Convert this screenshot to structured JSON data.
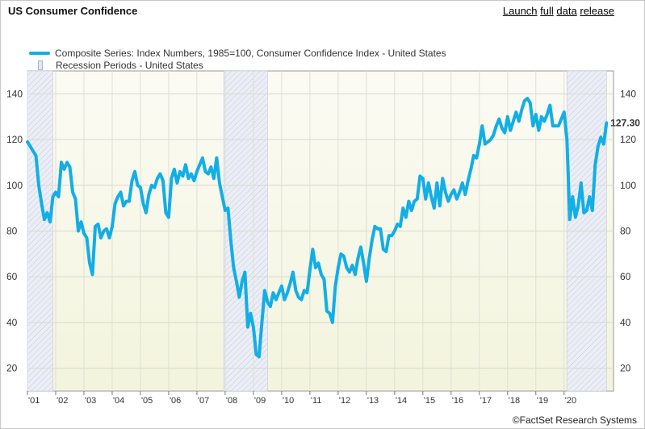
{
  "header": {
    "title": "US Consumer Confidence",
    "links": [
      "Launch",
      "full",
      "data",
      "release"
    ]
  },
  "footer": {
    "source": "©FactSet Research Systems"
  },
  "chart_data": {
    "type": "line",
    "title": "US Consumer Confidence",
    "legend": [
      {
        "name": "Composite Series: Index Numbers, 1985=100, Consumer Confidence Index - United States",
        "color": "#12aee6"
      },
      {
        "name": "Recession Periods - United States",
        "color": "#e4e7f3"
      }
    ],
    "legend_position": "top-left",
    "grid": true,
    "xlim": [
      2001.0,
      2021.75
    ],
    "ylim": [
      10,
      150
    ],
    "y_ticks": [
      20,
      40,
      60,
      80,
      100,
      120,
      140
    ],
    "x_tick_labels": [
      "'01",
      "'02",
      "'03",
      "'04",
      "'05",
      "'06",
      "'07",
      "'08",
      "'09",
      "'10",
      "'11",
      "'12",
      "'13",
      "'14",
      "'15",
      "'16",
      "'17",
      "'18",
      "'19",
      "'20"
    ],
    "x_tick_years": [
      2001,
      2002,
      2003,
      2004,
      2005,
      2006,
      2007,
      2008,
      2009,
      2010,
      2011,
      2012,
      2013,
      2014,
      2015,
      2016,
      2017,
      2018,
      2019,
      2020
    ],
    "last_value_label": "127.30",
    "recessions": [
      [
        2001.0,
        2001.9
      ],
      [
        2007.95,
        2009.5
      ],
      [
        2020.1,
        2021.5
      ]
    ],
    "series": [
      {
        "name": "Composite Series: Index Numbers, 1985=100, Consumer Confidence Index - United States",
        "color": "#12aee6",
        "points": [
          [
            2001.0,
            119
          ],
          [
            2001.1,
            117
          ],
          [
            2001.2,
            115
          ],
          [
            2001.3,
            113
          ],
          [
            2001.4,
            100
          ],
          [
            2001.5,
            92
          ],
          [
            2001.6,
            85
          ],
          [
            2001.7,
            88
          ],
          [
            2001.8,
            84
          ],
          [
            2001.9,
            95
          ],
          [
            2002.0,
            97
          ],
          [
            2002.1,
            95
          ],
          [
            2002.2,
            110
          ],
          [
            2002.3,
            107
          ],
          [
            2002.4,
            110
          ],
          [
            2002.5,
            108
          ],
          [
            2002.6,
            97
          ],
          [
            2002.7,
            94
          ],
          [
            2002.8,
            80
          ],
          [
            2002.9,
            84
          ],
          [
            2003.0,
            79
          ],
          [
            2003.1,
            77
          ],
          [
            2003.2,
            66
          ],
          [
            2003.3,
            61
          ],
          [
            2003.4,
            82
          ],
          [
            2003.5,
            83
          ],
          [
            2003.6,
            77
          ],
          [
            2003.7,
            80
          ],
          [
            2003.8,
            81
          ],
          [
            2003.9,
            77
          ],
          [
            2004.0,
            82
          ],
          [
            2004.1,
            92
          ],
          [
            2004.2,
            95
          ],
          [
            2004.3,
            97
          ],
          [
            2004.4,
            91
          ],
          [
            2004.5,
            93
          ],
          [
            2004.6,
            93
          ],
          [
            2004.7,
            102
          ],
          [
            2004.8,
            106
          ],
          [
            2004.9,
            100
          ],
          [
            2005.0,
            99
          ],
          [
            2005.1,
            92
          ],
          [
            2005.2,
            88
          ],
          [
            2005.3,
            96
          ],
          [
            2005.4,
            100
          ],
          [
            2005.5,
            99
          ],
          [
            2005.6,
            103
          ],
          [
            2005.7,
            105
          ],
          [
            2005.8,
            102
          ],
          [
            2005.9,
            88
          ],
          [
            2006.0,
            86
          ],
          [
            2006.1,
            103
          ],
          [
            2006.2,
            107
          ],
          [
            2006.3,
            101
          ],
          [
            2006.4,
            106
          ],
          [
            2006.5,
            104
          ],
          [
            2006.6,
            109
          ],
          [
            2006.7,
            103
          ],
          [
            2006.8,
            105
          ],
          [
            2006.9,
            102
          ],
          [
            2007.0,
            106
          ],
          [
            2007.1,
            109
          ],
          [
            2007.2,
            112
          ],
          [
            2007.3,
            106
          ],
          [
            2007.4,
            105
          ],
          [
            2007.5,
            108
          ],
          [
            2007.6,
            103
          ],
          [
            2007.7,
            112
          ],
          [
            2007.8,
            101
          ],
          [
            2007.9,
            95
          ],
          [
            2008.0,
            89
          ],
          [
            2008.1,
            90
          ],
          [
            2008.2,
            76
          ],
          [
            2008.3,
            64
          ],
          [
            2008.4,
            58
          ],
          [
            2008.5,
            51
          ],
          [
            2008.6,
            58
          ],
          [
            2008.7,
            62
          ],
          [
            2008.8,
            38
          ],
          [
            2008.9,
            44
          ],
          [
            2009.0,
            38
          ],
          [
            2009.1,
            26
          ],
          [
            2009.2,
            25
          ],
          [
            2009.3,
            40
          ],
          [
            2009.4,
            54
          ],
          [
            2009.5,
            49
          ],
          [
            2009.6,
            47
          ],
          [
            2009.7,
            53
          ],
          [
            2009.8,
            50
          ],
          [
            2009.9,
            53
          ],
          [
            2010.0,
            56
          ],
          [
            2010.1,
            50
          ],
          [
            2010.2,
            53
          ],
          [
            2010.3,
            57
          ],
          [
            2010.4,
            62
          ],
          [
            2010.5,
            54
          ],
          [
            2010.6,
            51
          ],
          [
            2010.7,
            50
          ],
          [
            2010.8,
            54
          ],
          [
            2010.9,
            53
          ],
          [
            2011.0,
            63
          ],
          [
            2011.1,
            72
          ],
          [
            2011.2,
            64
          ],
          [
            2011.3,
            66
          ],
          [
            2011.4,
            61
          ],
          [
            2011.5,
            59
          ],
          [
            2011.6,
            45
          ],
          [
            2011.7,
            44
          ],
          [
            2011.8,
            40
          ],
          [
            2011.9,
            56
          ],
          [
            2012.0,
            64
          ],
          [
            2012.1,
            70
          ],
          [
            2012.2,
            69
          ],
          [
            2012.3,
            64
          ],
          [
            2012.4,
            62
          ],
          [
            2012.5,
            65
          ],
          [
            2012.6,
            61
          ],
          [
            2012.7,
            68
          ],
          [
            2012.8,
            73
          ],
          [
            2012.9,
            66
          ],
          [
            2013.0,
            58
          ],
          [
            2013.1,
            68
          ],
          [
            2013.2,
            76
          ],
          [
            2013.3,
            82
          ],
          [
            2013.4,
            81
          ],
          [
            2013.5,
            81
          ],
          [
            2013.6,
            72
          ],
          [
            2013.7,
            71
          ],
          [
            2013.8,
            78
          ],
          [
            2013.9,
            78
          ],
          [
            2014.0,
            80
          ],
          [
            2014.1,
            83
          ],
          [
            2014.2,
            82
          ],
          [
            2014.3,
            90
          ],
          [
            2014.4,
            86
          ],
          [
            2014.5,
            93
          ],
          [
            2014.6,
            89
          ],
          [
            2014.7,
            93
          ],
          [
            2014.8,
            94
          ],
          [
            2014.9,
            104
          ],
          [
            2015.0,
            103
          ],
          [
            2015.1,
            94
          ],
          [
            2015.2,
            101
          ],
          [
            2015.3,
            95
          ],
          [
            2015.4,
            90
          ],
          [
            2015.5,
            101
          ],
          [
            2015.6,
            91
          ],
          [
            2015.7,
            103
          ],
          [
            2015.8,
            97
          ],
          [
            2015.9,
            93
          ],
          [
            2016.0,
            96
          ],
          [
            2016.1,
            98
          ],
          [
            2016.2,
            94
          ],
          [
            2016.3,
            97
          ],
          [
            2016.4,
            101
          ],
          [
            2016.5,
            96
          ],
          [
            2016.6,
            102
          ],
          [
            2016.7,
            107
          ],
          [
            2016.8,
            113
          ],
          [
            2016.9,
            112
          ],
          [
            2017.0,
            118
          ],
          [
            2017.1,
            126
          ],
          [
            2017.2,
            118
          ],
          [
            2017.3,
            119
          ],
          [
            2017.4,
            120
          ],
          [
            2017.5,
            122
          ],
          [
            2017.6,
            126
          ],
          [
            2017.7,
            129
          ],
          [
            2017.8,
            125
          ],
          [
            2017.9,
            123
          ],
          [
            2018.0,
            130
          ],
          [
            2018.1,
            124
          ],
          [
            2018.2,
            128
          ],
          [
            2018.3,
            132
          ],
          [
            2018.4,
            128
          ],
          [
            2018.5,
            133
          ],
          [
            2018.6,
            137
          ],
          [
            2018.7,
            138
          ],
          [
            2018.8,
            136
          ],
          [
            2018.9,
            126
          ],
          [
            2019.0,
            131
          ],
          [
            2019.1,
            124
          ],
          [
            2019.2,
            130
          ],
          [
            2019.3,
            128
          ],
          [
            2019.4,
            131
          ],
          [
            2019.5,
            135
          ],
          [
            2019.6,
            126
          ],
          [
            2019.7,
            126
          ],
          [
            2019.8,
            126
          ],
          [
            2019.9,
            129
          ],
          [
            2020.0,
            132
          ],
          [
            2020.1,
            120
          ],
          [
            2020.2,
            85
          ],
          [
            2020.3,
            95
          ],
          [
            2020.4,
            86
          ],
          [
            2020.5,
            91
          ],
          [
            2020.6,
            101
          ],
          [
            2020.7,
            88
          ],
          [
            2020.8,
            89
          ],
          [
            2020.9,
            95
          ],
          [
            2021.0,
            89
          ],
          [
            2021.1,
            109
          ],
          [
            2021.2,
            117
          ],
          [
            2021.3,
            121
          ],
          [
            2021.4,
            118
          ],
          [
            2021.5,
            127.3
          ]
        ]
      }
    ]
  }
}
